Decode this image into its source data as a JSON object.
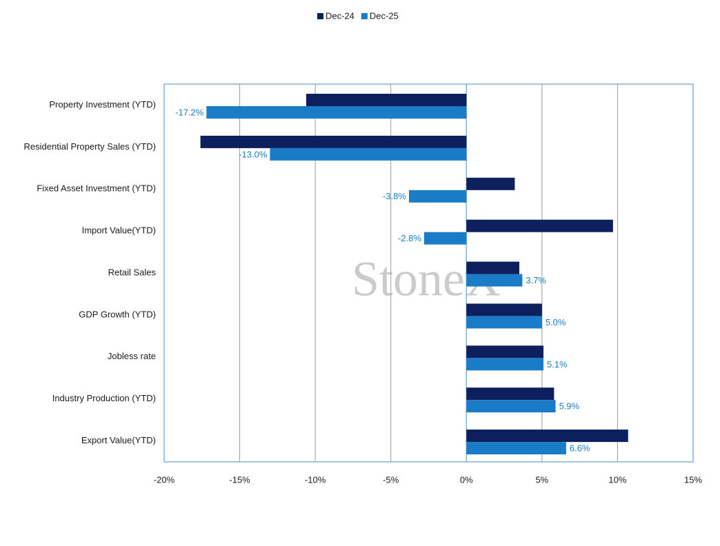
{
  "chart_data": {
    "type": "hbar",
    "watermark": "StoneX",
    "categories": [
      "Property Investment (YTD)",
      "Residential Property Sales (YTD)",
      "Fixed Asset Investment (YTD)",
      "Import Value(YTD)",
      "Retail Sales",
      "GDP Growth (YTD)",
      "Jobless rate",
      "Industry Production (YTD)",
      "Export Value(YTD)"
    ],
    "series": [
      {
        "name": "Dec-24",
        "color": "#0d1f5c",
        "values": [
          -10.6,
          -17.6,
          3.2,
          9.7,
          3.5,
          5.0,
          5.1,
          5.8,
          10.7
        ]
      },
      {
        "name": "Dec-25",
        "color": "#1a7cc7",
        "values": [
          -17.2,
          -13.0,
          -3.8,
          -2.8,
          3.7,
          5.0,
          5.1,
          5.9,
          6.6
        ],
        "value_labels": [
          "-17.2%",
          "-13.0%",
          "-3.8%",
          "-2.8%",
          "3.7%",
          "5.0%",
          "5.1%",
          "5.9%",
          "6.6%"
        ]
      }
    ],
    "xlim": [
      -20,
      15
    ],
    "xticks": [
      {
        "value": -20,
        "label": "-20%"
      },
      {
        "value": -15,
        "label": "-15%"
      },
      {
        "value": -10,
        "label": "-10%"
      },
      {
        "value": -5,
        "label": "-5%"
      },
      {
        "value": 0,
        "label": "0%"
      },
      {
        "value": 5,
        "label": "5%"
      },
      {
        "value": 10,
        "label": "10%"
      },
      {
        "value": 15,
        "label": "15%"
      }
    ],
    "grid": true,
    "legend": "top"
  }
}
